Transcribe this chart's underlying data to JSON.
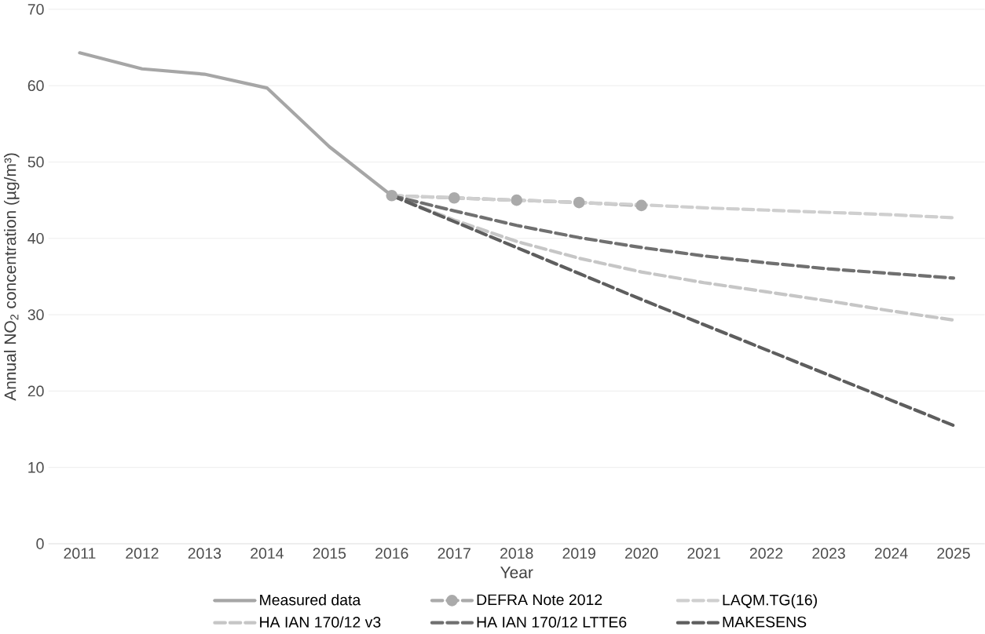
{
  "chart_data": {
    "type": "line",
    "xlabel": "Year",
    "ylabel": "Annual NO$_{2}$ concentration (µg/m³)",
    "categories": [
      "2011",
      "2012",
      "2013",
      "2014",
      "2015",
      "2016",
      "2017",
      "2018",
      "2019",
      "2020",
      "2021",
      "2022",
      "2023",
      "2024",
      "2025"
    ],
    "ylim": [
      0,
      70
    ],
    "yticks": [
      0,
      10,
      20,
      30,
      40,
      50,
      60,
      70
    ],
    "grid": "y",
    "legend": "bottom",
    "series": [
      {
        "name": "Measured data",
        "color": "#a6a6a6",
        "line_style": "solid",
        "values": [
          64.3,
          62.2,
          61.5,
          59.7,
          52.0,
          45.6,
          null,
          null,
          null,
          null,
          null,
          null,
          null,
          null,
          null
        ]
      },
      {
        "name": "DEFRA Note 2012",
        "color": "#aaaaaa",
        "line_style": "dashed",
        "marker": "circle",
        "values": [
          null,
          null,
          null,
          null,
          null,
          45.6,
          45.3,
          45.0,
          44.7,
          44.3,
          null,
          null,
          null,
          null,
          null
        ]
      },
      {
        "name": "LAQM.TG(16)",
        "color": "#cfcfcf",
        "line_style": "dashed",
        "values": [
          null,
          null,
          null,
          null,
          null,
          45.6,
          45.3,
          45.0,
          44.7,
          44.4,
          44.0,
          43.7,
          43.4,
          43.1,
          42.7
        ]
      },
      {
        "name": "HA IAN 170/12 v3",
        "color": "#c6c6c6",
        "line_style": "dashed",
        "values": [
          null,
          null,
          null,
          null,
          null,
          45.6,
          42.4,
          39.6,
          37.4,
          35.6,
          34.2,
          33.0,
          31.8,
          30.5,
          29.3
        ]
      },
      {
        "name": "HA IAN 170/12 LTTE6",
        "color": "#707070",
        "line_style": "dashed",
        "values": [
          null,
          null,
          null,
          null,
          null,
          45.6,
          43.6,
          41.7,
          40.1,
          38.8,
          37.7,
          36.8,
          36.0,
          35.4,
          34.8
        ]
      },
      {
        "name": "MAKESENS",
        "color": "#5e5e5e",
        "line_style": "dashed",
        "values": [
          null,
          null,
          null,
          null,
          null,
          45.6,
          42.2,
          38.8,
          35.4,
          32.0,
          28.7,
          25.4,
          22.1,
          18.8,
          15.5
        ]
      }
    ]
  }
}
